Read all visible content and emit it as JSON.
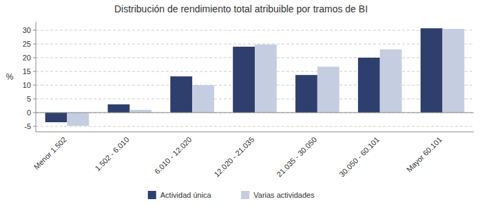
{
  "chart_data": {
    "type": "bar",
    "title": "Distribución de rendimiento total atribuible por tramos de BI",
    "categories": [
      "Menor 1.502",
      "1.502 - 6.010",
      "6.010 - 12.020",
      "12.020 - 21.035",
      "21.035 - 30.050",
      "30.050 - 60.101",
      "Mayor 60.101"
    ],
    "series": [
      {
        "name": "Actividad única",
        "color": "#2e3f6e",
        "values": [
          -3.5,
          3.0,
          13.2,
          24.0,
          13.7,
          20.0,
          30.7
        ]
      },
      {
        "name": "Varias actividades",
        "color": "#c5cde0",
        "values": [
          -4.8,
          1.0,
          10.0,
          24.8,
          16.7,
          23.0,
          30.5
        ]
      }
    ],
    "ylabel": "%",
    "ylim": [
      -7,
      33
    ],
    "yticks": [
      -5,
      0,
      5,
      10,
      15,
      20,
      25,
      30
    ],
    "grid": true,
    "legend": "bottom"
  }
}
